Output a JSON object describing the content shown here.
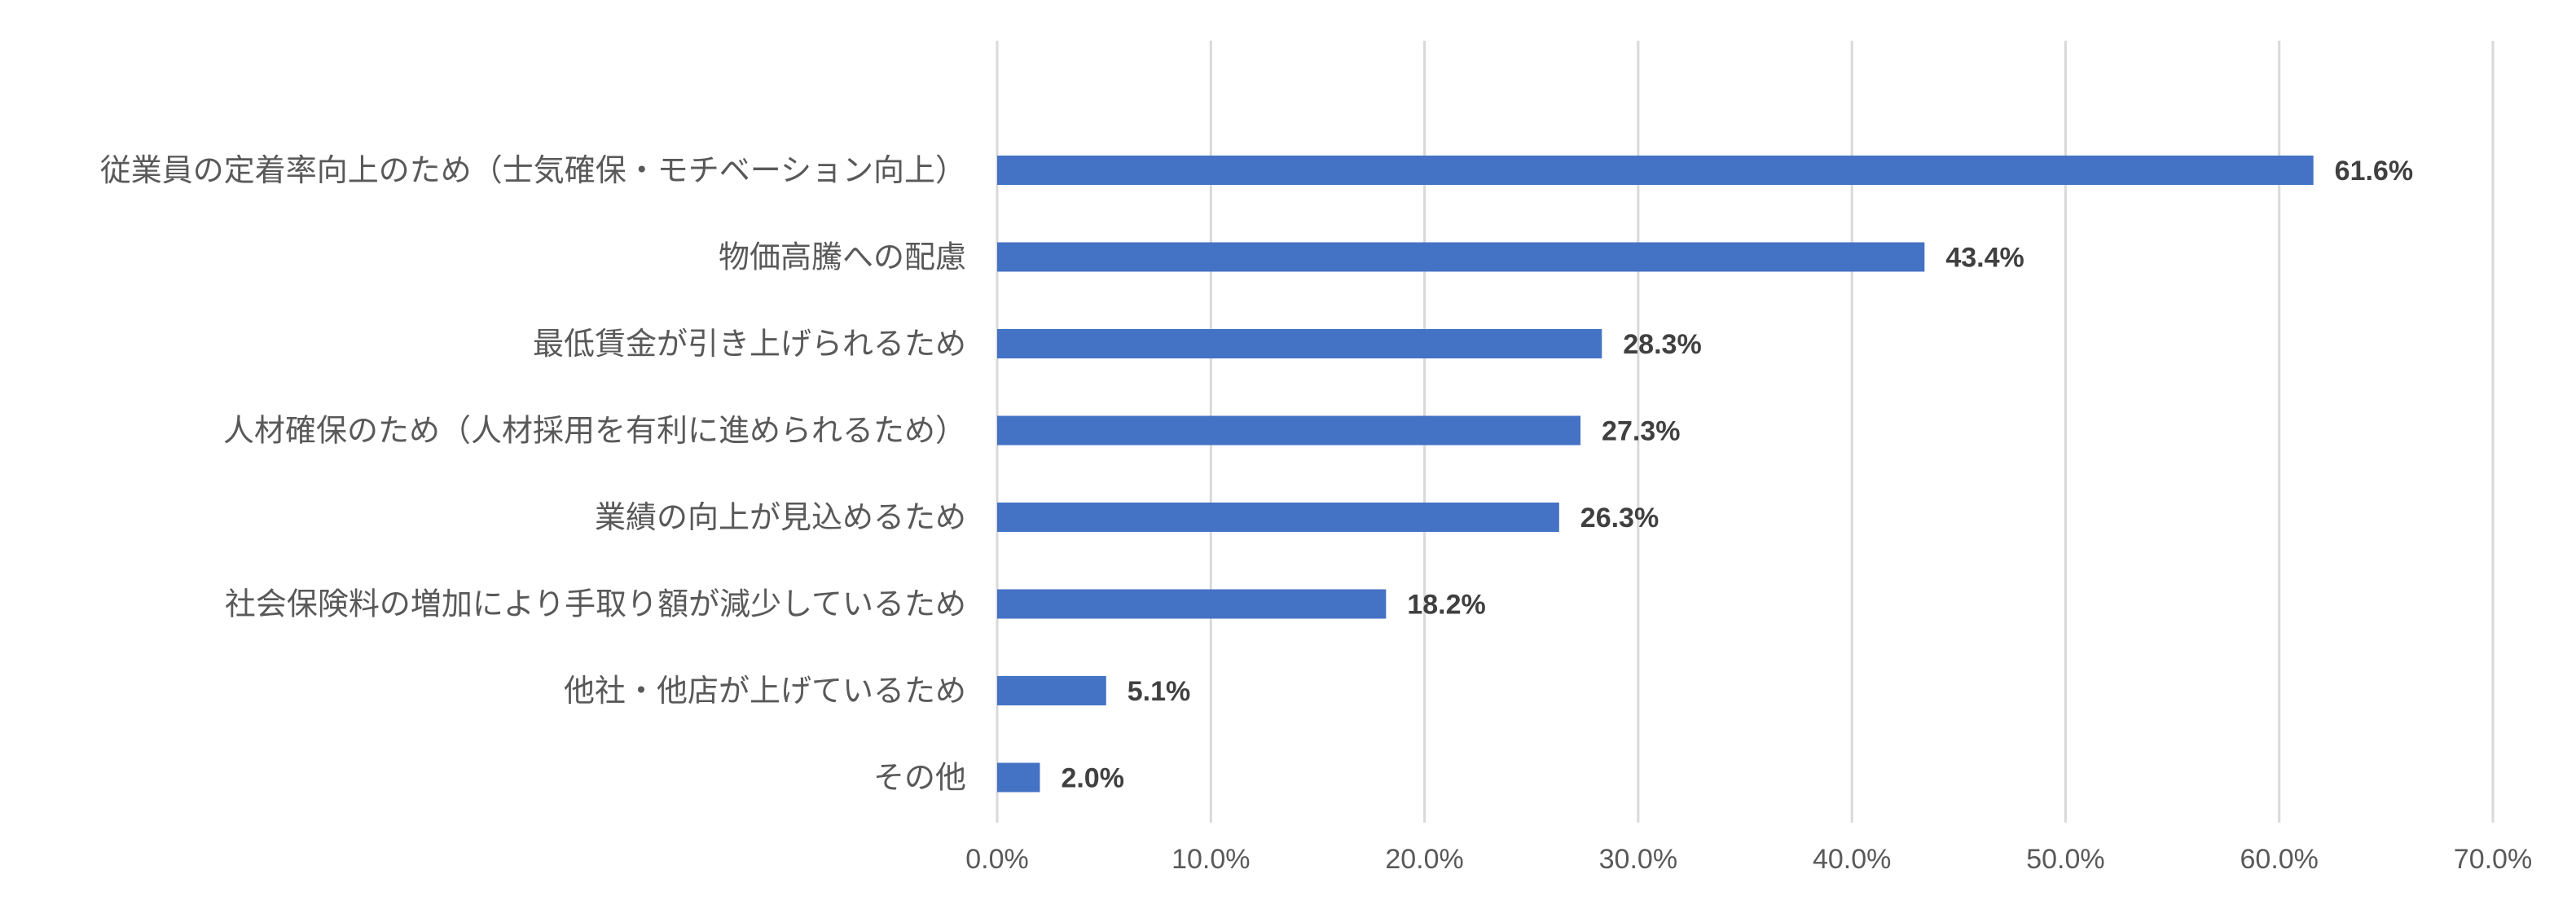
{
  "chart_data": {
    "type": "bar",
    "orientation": "horizontal",
    "categories": [
      "従業員の定着率向上のため（士気確保・モチベーション向上）",
      "物価高騰への配慮",
      "最低賃金が引き上げられるため",
      "人材確保のため（人材採用を有利に進められるため）",
      "業績の向上が見込めるため",
      "社会保険料の増加により手取り額が減少しているため",
      "他社・他店が上げているため",
      "その他"
    ],
    "values": [
      61.6,
      43.4,
      28.3,
      27.3,
      26.3,
      18.2,
      5.1,
      2.0
    ],
    "data_labels": [
      "61.6%",
      "43.4%",
      "28.3%",
      "27.3%",
      "26.3%",
      "18.2%",
      "5.1%",
      "2.0%"
    ],
    "x_ticks": [
      "0.0%",
      "10.0%",
      "20.0%",
      "30.0%",
      "40.0%",
      "50.0%",
      "60.0%",
      "70.0%"
    ],
    "xlim": [
      0,
      70
    ],
    "grid": "vertical",
    "legend": "none",
    "bar_color": "#4472C4",
    "grid_color": "#D9D9D9"
  }
}
